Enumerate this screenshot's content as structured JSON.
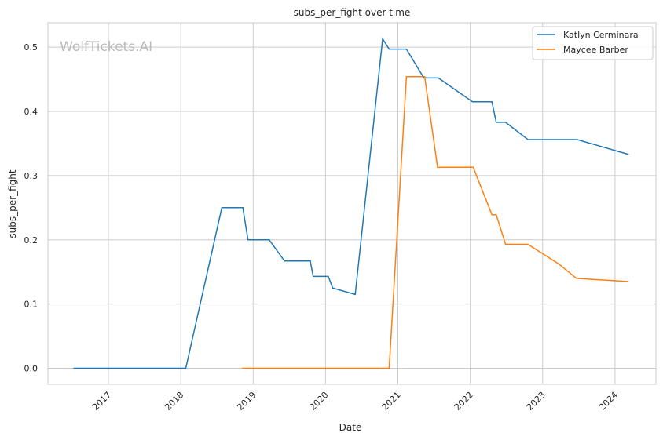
{
  "chart_data": {
    "type": "line",
    "title": "subs_per_fight over time",
    "xlabel": "Date",
    "ylabel": "subs_per_fight",
    "xlim": [
      "2016-03-01",
      "2024-07-26"
    ],
    "ylim": [
      -0.025,
      0.538
    ],
    "xticks": [
      "2017",
      "2018",
      "2019",
      "2020",
      "2021",
      "2022",
      "2023",
      "2024"
    ],
    "yticks": [
      "0.0",
      "0.1",
      "0.2",
      "0.3",
      "0.4",
      "0.5"
    ],
    "grid": true,
    "legend_position": "top-right",
    "watermark": "WolfTickets.AI",
    "series": [
      {
        "name": "Katlyn Cerminara",
        "color": "#1f77b4",
        "points": [
          [
            "2016-07-08",
            0
          ],
          [
            "2018-01-26",
            0
          ],
          [
            "2018-07-27",
            0.25
          ],
          [
            "2018-11-10",
            0.25
          ],
          [
            "2018-12-06",
            0.2
          ],
          [
            "2019-03-23",
            0.2
          ],
          [
            "2019-06-08",
            0.167
          ],
          [
            "2019-10-16",
            0.167
          ],
          [
            "2019-10-31",
            0.143
          ],
          [
            "2020-01-15",
            0.143
          ],
          [
            "2020-02-06",
            0.125
          ],
          [
            "2020-05-30",
            0.115
          ],
          [
            "2020-10-16",
            0.513
          ],
          [
            "2020-11-18",
            0.497
          ],
          [
            "2021-02-13",
            0.497
          ],
          [
            "2021-05-12",
            0.452
          ],
          [
            "2021-07-24",
            0.452
          ],
          [
            "2022-01-12",
            0.415
          ],
          [
            "2022-04-20",
            0.415
          ],
          [
            "2022-05-12",
            0.383
          ],
          [
            "2022-06-28",
            0.383
          ],
          [
            "2022-10-19",
            0.356
          ],
          [
            "2023-06-24",
            0.356
          ],
          [
            "2024-03-10",
            0.333
          ]
        ]
      },
      {
        "name": "Maycee Barber",
        "color": "#ff7f0e",
        "points": [
          [
            "2018-11-06",
            0
          ],
          [
            "2020-11-18",
            0
          ],
          [
            "2021-02-13",
            0.454
          ],
          [
            "2021-05-16",
            0.454
          ],
          [
            "2021-07-20",
            0.313
          ],
          [
            "2022-01-16",
            0.313
          ],
          [
            "2022-04-20",
            0.239
          ],
          [
            "2022-05-12",
            0.239
          ],
          [
            "2022-06-28",
            0.193
          ],
          [
            "2022-10-19",
            0.193
          ],
          [
            "2023-03-21",
            0.163
          ],
          [
            "2023-06-21",
            0.14
          ],
          [
            "2024-03-10",
            0.135
          ]
        ]
      }
    ]
  }
}
